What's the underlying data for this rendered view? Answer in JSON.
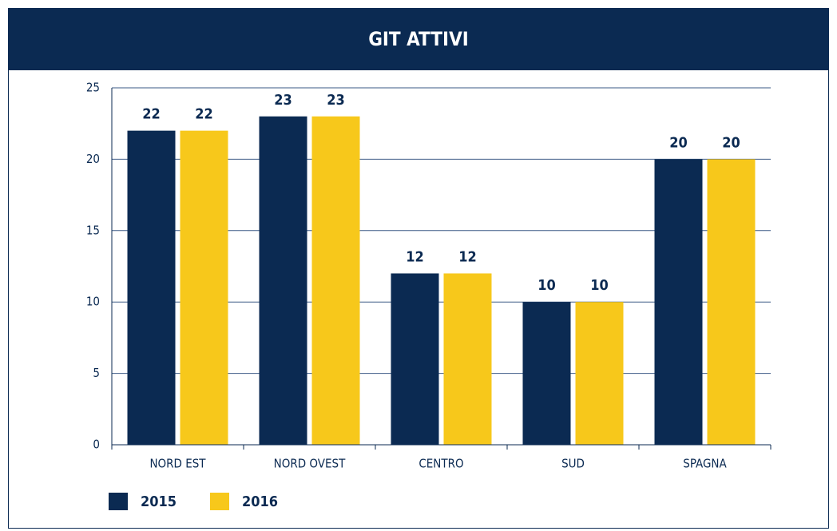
{
  "chart_data": {
    "type": "bar",
    "title": "GIT ATTIVI",
    "categories": [
      "NORD EST",
      "NORD OVEST",
      "CENTRO",
      "SUD",
      "SPAGNA"
    ],
    "series": [
      {
        "name": "2015",
        "color": "#0b2a52",
        "values": [
          22,
          23,
          12,
          10,
          20
        ]
      },
      {
        "name": "2016",
        "color": "#f7c81b",
        "values": [
          22,
          23,
          12,
          10,
          20
        ]
      }
    ],
    "ylim": [
      0,
      25
    ],
    "yticks": [
      0,
      5,
      10,
      15,
      20,
      25
    ],
    "grid": true
  }
}
